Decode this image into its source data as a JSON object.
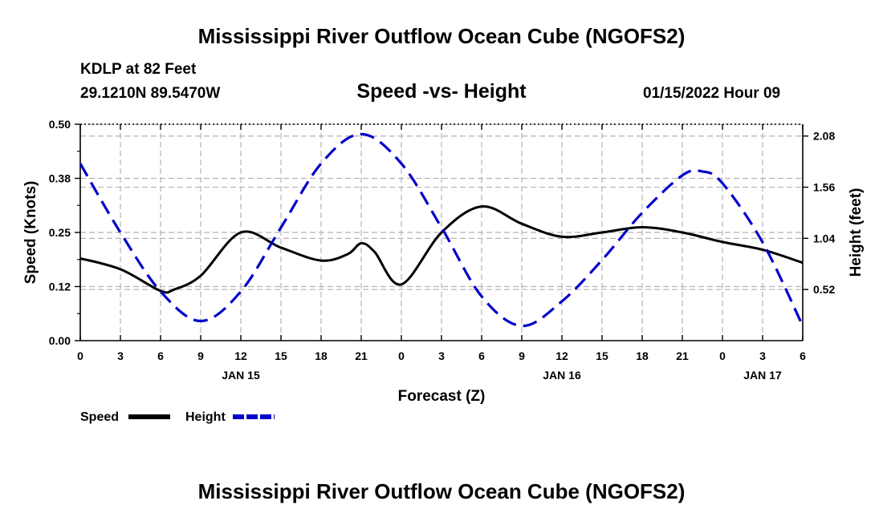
{
  "title": "Mississippi River Outflow Ocean Cube (NGOFS2)",
  "footer_title": "Mississippi River Outflow Ocean Cube (NGOFS2)",
  "station": "KDLP at 82 Feet",
  "coords": "29.1210N  89.5470W",
  "subtitle": "Speed -vs- Height",
  "datetime": "01/15/2022 Hour 09",
  "chart_data": {
    "type": "line",
    "title": "Speed -vs- Height",
    "xlabel": "Forecast (Z)",
    "ylabel": "Speed (Knots)",
    "ylabel_right": "Height (feet)",
    "xlim": [
      0,
      54
    ],
    "ylim": [
      0,
      0.5
    ],
    "ylim_right": [
      0,
      2.2
    ],
    "x_tick_values": [
      0,
      3,
      6,
      9,
      12,
      15,
      18,
      21,
      24,
      27,
      30,
      33,
      36,
      39,
      42,
      45,
      48,
      51,
      54
    ],
    "x_tick_labels": [
      "0",
      "3",
      "6",
      "9",
      "12",
      "15",
      "18",
      "21",
      "0",
      "3",
      "6",
      "9",
      "12",
      "15",
      "18",
      "21",
      "0",
      "3",
      "6"
    ],
    "date_labels": [
      {
        "x": 12,
        "label": "JAN 15"
      },
      {
        "x": 36,
        "label": "JAN 16"
      },
      {
        "x": 51,
        "label": "JAN 17"
      }
    ],
    "y_ticks_left": [
      "0.00",
      "0.12",
      "0.25",
      "0.38",
      "0.50"
    ],
    "y_ticks_left_values": [
      0,
      0.125,
      0.25,
      0.375,
      0.5
    ],
    "y_ticks_right": [
      "0.52",
      "1.04",
      "1.56",
      "2.08"
    ],
    "y_ticks_right_values": [
      0.52,
      1.04,
      1.56,
      2.08
    ],
    "grid": true,
    "series": [
      {
        "name": "Speed",
        "axis": "left",
        "color": "#000000",
        "dash": "solid",
        "x": [
          0,
          3,
          6,
          7,
          9,
          12,
          15,
          18,
          20,
          21,
          22,
          24,
          27,
          30,
          33,
          36,
          39,
          42,
          45,
          48,
          51,
          54
        ],
        "y": [
          0.19,
          0.165,
          0.115,
          0.118,
          0.15,
          0.25,
          0.215,
          0.185,
          0.2,
          0.225,
          0.205,
          0.13,
          0.25,
          0.31,
          0.27,
          0.24,
          0.25,
          0.262,
          0.25,
          0.228,
          0.21,
          0.18
        ]
      },
      {
        "name": "Height",
        "axis": "right",
        "color": "#0000cc",
        "dash": "dashed",
        "x": [
          0,
          3,
          6,
          9,
          12,
          15,
          18,
          21,
          24,
          27,
          30,
          33,
          36,
          39,
          42,
          45,
          46.5,
          48,
          51,
          54
        ],
        "y": [
          1.8,
          1.1,
          0.5,
          0.2,
          0.5,
          1.15,
          1.8,
          2.1,
          1.8,
          1.15,
          0.45,
          0.15,
          0.4,
          0.82,
          1.3,
          1.68,
          1.72,
          1.6,
          1.0,
          0.15
        ]
      }
    ],
    "legend": [
      {
        "label": "Speed",
        "color": "#000000",
        "dash": "solid"
      },
      {
        "label": "Height",
        "color": "#0000cc",
        "dash": "dashed"
      }
    ],
    "legend_position": "bottom-left"
  }
}
